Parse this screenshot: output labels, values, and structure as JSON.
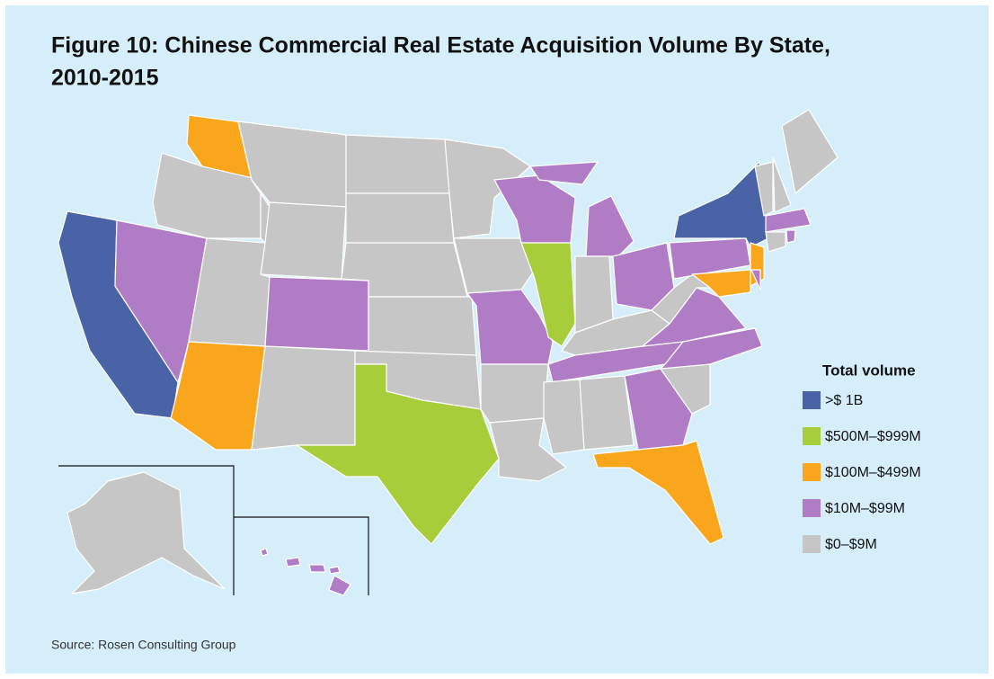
{
  "title": "Figure 10: Chinese Commercial Real Estate Acquisition Volume By State, 2010-2015",
  "title_lines": [
    "Figure 10: Chinese Commercial Real Estate Acquisition Volume By State,",
    "2010-2015"
  ],
  "legend": {
    "title": "Total volume",
    "items": [
      {
        "label": ">$ 1B",
        "color": "#4a63a6"
      },
      {
        "label": "$500M–$999M",
        "color": "#a8cd3b"
      },
      {
        "label": "$100M–$499M",
        "color": "#f9a61c"
      },
      {
        "label": "$10M–$99M",
        "color": "#b07cc6"
      },
      {
        "label": "$0–$9M",
        "color": "#c6c6c6"
      }
    ]
  },
  "source": "Source: Rosen Consulting Group"
}
